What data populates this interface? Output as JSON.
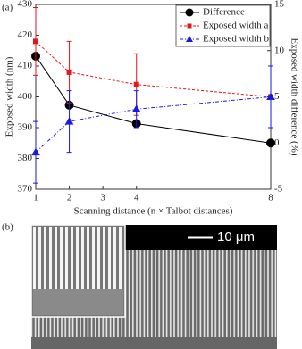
{
  "panel_a_label": "(a)",
  "chart_data": {
    "type": "line",
    "x": [
      1,
      2,
      4,
      8
    ],
    "xlim": [
      1,
      8
    ],
    "xticks": [
      1,
      2,
      3,
      4,
      8
    ],
    "ylim": [
      370,
      430
    ],
    "yticks": [
      370,
      380,
      390,
      400,
      410,
      420,
      430
    ],
    "y2lim": [
      -5,
      15
    ],
    "y2ticks": [
      -5,
      0,
      5,
      10,
      15
    ],
    "xlabel": "Scanning distance (n × Talbot distances)",
    "ylabel": "Exposed width (nm)",
    "y2label": "Exposed width difference (%)",
    "legend": "upper right",
    "series": [
      {
        "name": "Difference",
        "color": "#000000",
        "marker": "circle",
        "dash": "solid",
        "axis": "y2",
        "values": [
          9.4,
          4.1,
          2.1,
          0
        ]
      },
      {
        "name": "Exposed width a",
        "color": "#e8141b",
        "marker": "square",
        "dash": "dashed",
        "values": [
          418,
          408,
          404,
          400
        ],
        "errors": [
          11,
          10,
          10,
          null
        ]
      },
      {
        "name": "Exposed width b",
        "color": "#1a1ae0",
        "marker": "triangle",
        "dash": "dashdot",
        "values": [
          382,
          392,
          396,
          400
        ],
        "errors": [
          10,
          10,
          6,
          10
        ]
      }
    ]
  },
  "panel_b": {
    "label": "(b)",
    "scale_bar": "10 μm"
  }
}
